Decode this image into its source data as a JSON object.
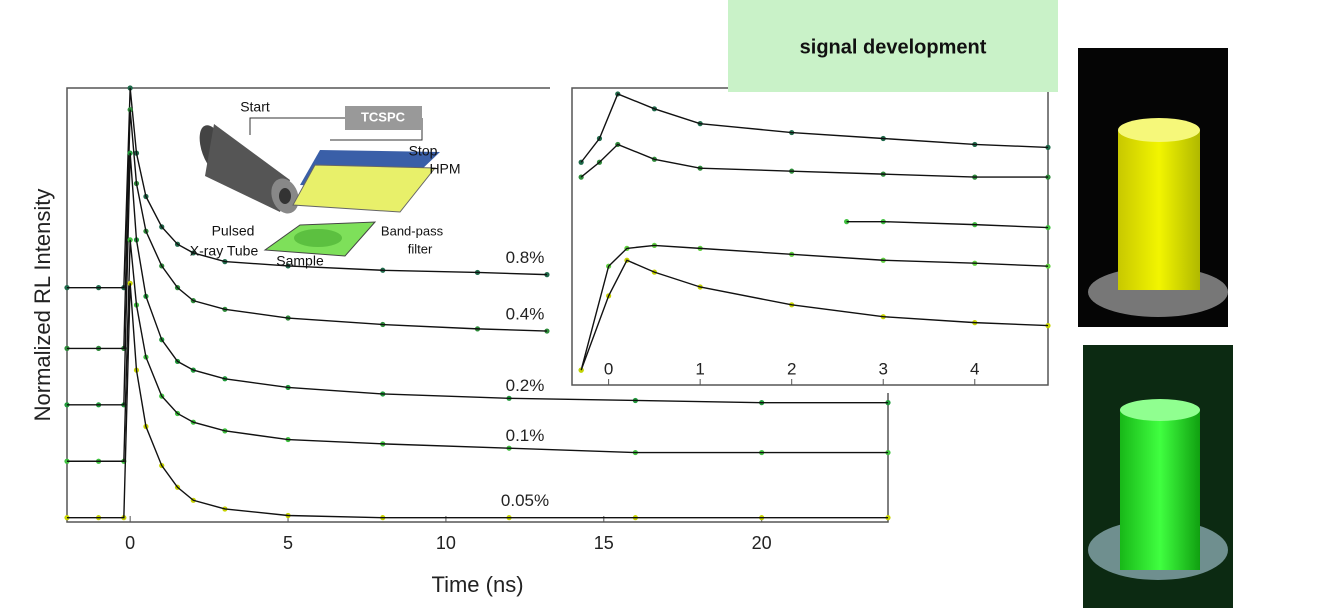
{
  "banner": {
    "title": "signal development"
  },
  "schematic": {
    "labels": [
      "Start",
      "TCSPC",
      "Stop",
      "HPM",
      "Pulsed",
      "X-ray Tube",
      "Band-pass",
      "filter",
      "Sample"
    ]
  },
  "chart_data": [
    {
      "type": "line",
      "xlabel": "Time (ns)",
      "ylabel": "Normalized RL Intensity",
      "xlim": [
        -2,
        24
      ],
      "xticks": [
        0,
        5,
        10,
        15,
        20
      ],
      "ylim": [
        0,
        10
      ],
      "series": [
        {
          "name": "0.8%",
          "color": "#1e6a4a",
          "x": [
            -2,
            -1,
            -0.2,
            0,
            0.2,
            0.5,
            1,
            1.5,
            2,
            3,
            5,
            8,
            11,
            13.2
          ],
          "values": [
            5.4,
            5.4,
            5.4,
            10,
            8.5,
            7.5,
            6.8,
            6.4,
            6.2,
            6.0,
            5.9,
            5.8,
            5.75,
            5.7
          ]
        },
        {
          "name": "0.4%",
          "color": "#2e8b3a",
          "x": [
            -2,
            -1,
            -0.2,
            0,
            0.2,
            0.5,
            1,
            1.5,
            2,
            3,
            5,
            8,
            11,
            13.2
          ],
          "values": [
            4.0,
            4.0,
            4.0,
            9.5,
            7.8,
            6.7,
            5.9,
            5.4,
            5.1,
            4.9,
            4.7,
            4.55,
            4.45,
            4.4
          ]
        },
        {
          "name": "0.2%",
          "color": "#1f9a3a",
          "x": [
            -2,
            -1,
            -0.2,
            0,
            0.2,
            0.5,
            1,
            1.5,
            2,
            3,
            5,
            8,
            12,
            16,
            20,
            24
          ],
          "values": [
            2.7,
            2.7,
            2.7,
            8.5,
            6.5,
            5.2,
            4.2,
            3.7,
            3.5,
            3.3,
            3.1,
            2.95,
            2.85,
            2.8,
            2.75,
            2.75
          ]
        },
        {
          "name": "0.1%",
          "color": "#3fc23f",
          "x": [
            -2,
            -1,
            -0.2,
            0,
            0.2,
            0.5,
            1,
            1.5,
            2,
            3,
            5,
            8,
            12,
            16,
            20,
            24
          ],
          "values": [
            1.4,
            1.4,
            1.4,
            6.5,
            5.0,
            3.8,
            2.9,
            2.5,
            2.3,
            2.1,
            1.9,
            1.8,
            1.7,
            1.6,
            1.6,
            1.6
          ]
        },
        {
          "name": "0.05%",
          "color": "#c8d400",
          "x": [
            -2,
            -1,
            -0.2,
            0,
            0.2,
            0.5,
            1,
            1.5,
            2,
            3,
            5,
            8,
            12,
            16,
            20,
            24
          ],
          "values": [
            0.1,
            0.1,
            0.1,
            5.5,
            3.5,
            2.2,
            1.3,
            0.8,
            0.5,
            0.3,
            0.15,
            0.1,
            0.1,
            0.1,
            0.1,
            0.1
          ]
        }
      ]
    },
    {
      "type": "line",
      "xlim": [
        -0.4,
        4.8
      ],
      "xticks": [
        0,
        1,
        2,
        3,
        4
      ],
      "ylim": [
        0,
        10
      ],
      "series": [
        {
          "color": "#1e6a4a",
          "x": [
            -0.3,
            -0.1,
            0.1,
            0.5,
            1,
            2,
            3,
            4,
            4.8
          ],
          "values": [
            7.5,
            8.3,
            9.8,
            9.3,
            8.8,
            8.5,
            8.3,
            8.1,
            8.0
          ]
        },
        {
          "color": "#2e8b3a",
          "x": [
            -0.3,
            -0.1,
            0.1,
            0.5,
            1,
            2,
            3,
            4,
            4.8
          ],
          "values": [
            7.0,
            7.5,
            8.1,
            7.6,
            7.3,
            7.2,
            7.1,
            7.0,
            7.0
          ]
        },
        {
          "color": "#3fc23f",
          "x": [
            2.6,
            3,
            4,
            4.8
          ],
          "values": [
            5.5,
            5.5,
            5.4,
            5.3
          ]
        },
        {
          "color": "#60d040",
          "x": [
            -0.3,
            0,
            0.2,
            0.5,
            1,
            2,
            3,
            4,
            4.8
          ],
          "values": [
            0.5,
            4.0,
            4.6,
            4.7,
            4.6,
            4.4,
            4.2,
            4.1,
            4.0
          ]
        },
        {
          "color": "#c8d400",
          "x": [
            -0.3,
            0,
            0.2,
            0.5,
            1,
            2,
            3,
            4,
            4.8
          ],
          "values": [
            0.5,
            3.0,
            4.2,
            3.8,
            3.3,
            2.7,
            2.3,
            2.1,
            2.0
          ]
        }
      ]
    }
  ]
}
